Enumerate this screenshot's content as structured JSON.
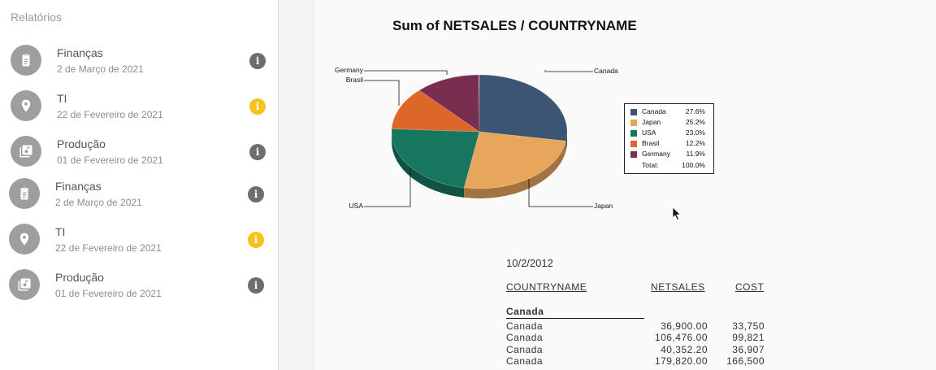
{
  "sidebar": {
    "title": "Relatórios",
    "items": [
      {
        "title": "Finanças",
        "date": "2 de Março de 2021",
        "icon": "clipboard-icon",
        "status": "info"
      },
      {
        "title": "TI",
        "date": "22 de Fevereiro de 2021",
        "icon": "location-pin-icon",
        "status": "warning"
      },
      {
        "title": "Produção",
        "date": "01 de Fevereiro de 2021",
        "icon": "music-library-icon",
        "status": "info"
      },
      {
        "title": "Finanças",
        "date": "2 de Março de 2021",
        "icon": "clipboard-icon",
        "status": "info"
      },
      {
        "title": "TI",
        "date": "22 de Fevereiro de 2021",
        "icon": "location-pin-icon",
        "status": "warning"
      },
      {
        "title": "Produção",
        "date": "01 de Fevereiro de 2021",
        "icon": "music-library-icon",
        "status": "info"
      }
    ],
    "info_glyph": "i"
  },
  "report": {
    "chart_data": {
      "type": "pie",
      "title": "Sum of NETSALES / COUNTRYNAME",
      "slices": [
        {
          "label": "Canada",
          "percent": 27.6,
          "color": "#3b5573"
        },
        {
          "label": "Japan",
          "percent": 25.2,
          "color": "#e8a55c"
        },
        {
          "label": "USA",
          "percent": 23.0,
          "color": "#17775e"
        },
        {
          "label": "Brasil",
          "percent": 12.2,
          "color": "#dd6629"
        },
        {
          "label": "Germany",
          "percent": 11.9,
          "color": "#7a2e4f"
        }
      ],
      "legend_total_label": "Total:",
      "legend_total_value": "100.0%",
      "legend_position": "right"
    },
    "legend": {
      "rows": [
        {
          "name": "Canada",
          "pct": "27.6%"
        },
        {
          "name": "Japan",
          "pct": "25.2%"
        },
        {
          "name": "USA",
          "pct": "23.0%"
        },
        {
          "name": "Brasil",
          "pct": "12.2%"
        },
        {
          "name": "Germany",
          "pct": "11.9%"
        }
      ],
      "total_label": "Total:",
      "total_value": "100.0%"
    },
    "date": "10/2/2012",
    "columns": [
      "COUNTRYNAME",
      "NETSALES",
      "COST"
    ],
    "group": "Canada",
    "rows": [
      {
        "country": "Canada",
        "netsales": "36,900.00",
        "cost": "33,750"
      },
      {
        "country": "Canada",
        "netsales": "106,476.00",
        "cost": "99,821"
      },
      {
        "country": "Canada",
        "netsales": "40,352.20",
        "cost": "36,907"
      },
      {
        "country": "Canada",
        "netsales": "179,820.00",
        "cost": "166,500"
      }
    ]
  }
}
